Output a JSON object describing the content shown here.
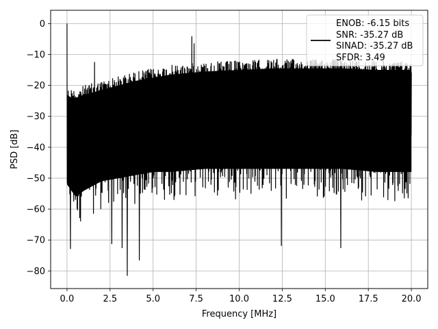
{
  "chart_data": {
    "type": "line",
    "xlabel": "Frequency [MHz]",
    "ylabel": "PSD [dB]",
    "xlim": [
      -0.95,
      20.95
    ],
    "ylim": [
      -85.7,
      4.3
    ],
    "xticks": [
      0.0,
      2.5,
      5.0,
      7.5,
      10.0,
      12.5,
      15.0,
      17.5,
      20.0
    ],
    "xtick_labels": [
      "0.0",
      "2.5",
      "5.0",
      "7.5",
      "10.0",
      "12.5",
      "15.0",
      "17.5",
      "20.0"
    ],
    "yticks": [
      0,
      -10,
      -20,
      -30,
      -40,
      -50,
      -60,
      -70,
      -80
    ],
    "ytick_labels": [
      "0",
      "−10",
      "−20",
      "−30",
      "−40",
      "−50",
      "−60",
      "−70",
      "−80"
    ],
    "grid": true,
    "legend": {
      "placement": "top-right",
      "entries": [
        "ENOB: -6.15 bits",
        "SNR: -35.27 dB",
        "SINAD: -35.27 dB",
        "SFDR: 3.49"
      ]
    },
    "series": [
      {
        "color": "#000000",
        "x_range": [
          0.0,
          20.0
        ],
        "approx_upper_envelope": {
          "x": [
            0.0,
            0.1,
            0.5,
            1.0,
            2.0,
            3.0,
            4.0,
            5.0,
            6.0,
            7.0,
            8.0,
            10.0,
            12.0,
            14.0,
            16.0,
            18.0,
            20.0
          ],
          "y": [
            -20,
            -21,
            -21,
            -20,
            -18.5,
            -17,
            -15.5,
            -14.5,
            -13.5,
            -13,
            -12.5,
            -12,
            -11.5,
            -11.5,
            -11.5,
            -12,
            -12
          ]
        },
        "approx_lower_envelope": {
          "x": [
            0.0,
            0.5,
            1.0,
            2.0,
            3.0,
            4.0,
            5.0,
            6.0,
            8.0,
            10.0,
            12.0,
            14.0,
            16.0,
            18.0,
            20.0
          ],
          "y": [
            -62,
            -66,
            -64,
            -61,
            -60,
            -59,
            -58,
            -58,
            -57,
            -57,
            -57,
            -57,
            -57,
            -58,
            -58
          ]
        },
        "peaks": [
          {
            "x": 0.0,
            "y": 0.0
          },
          {
            "x": 1.6,
            "y": -12.5
          },
          {
            "x": 7.25,
            "y": -4.2
          },
          {
            "x": 7.38,
            "y": -6.5
          }
        ],
        "dips": [
          {
            "x": 0.2,
            "y": -72.8
          },
          {
            "x": 2.6,
            "y": -71.2
          },
          {
            "x": 3.2,
            "y": -72.5
          },
          {
            "x": 3.5,
            "y": -81.5
          },
          {
            "x": 4.2,
            "y": -76.5
          },
          {
            "x": 12.45,
            "y": -71.8
          },
          {
            "x": 15.9,
            "y": -72.5
          }
        ]
      }
    ]
  }
}
